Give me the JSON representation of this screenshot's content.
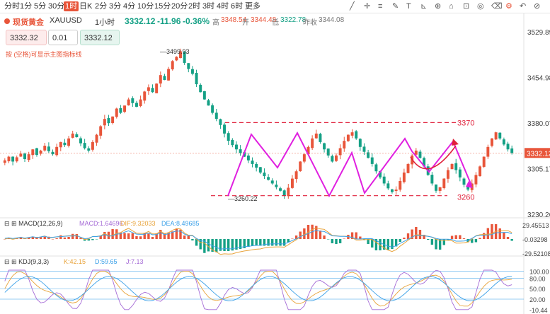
{
  "toolbar": {
    "timeframes": [
      "分时",
      "1分",
      "5分",
      "30分",
      "1时",
      "日K",
      "2分",
      "3分",
      "4分",
      "10分",
      "15分",
      "20分",
      "2时",
      "3时",
      "4时",
      "6时",
      "更多"
    ],
    "active_timeframe": "1时",
    "right_icons": [
      "trendline-icon",
      "crosshair-icon",
      "fibonacci-icon",
      "brush-icon",
      "text-icon",
      "measure-icon",
      "zoom-icon",
      "magnet-icon",
      "lock-icon",
      "eye-icon",
      "delete-icon",
      "settings-icon",
      "undo-icon",
      "eye-hide-icon"
    ]
  },
  "info": {
    "symbol_name": "现货黄金",
    "symbol_code": "XAUUSD",
    "period": "1小时",
    "price": "3332.12",
    "change": "-11.96",
    "change_pct": "-0.36%",
    "high_label": "高",
    "high": "3348.54",
    "open_label": "开",
    "open": "3344.48",
    "low_label": "低",
    "low": "3322.78",
    "prev_close_label": "昨收",
    "prev_close": "3344.08"
  },
  "order": {
    "sell_price": "3332.32",
    "quantity": "0.01",
    "buy_price": "3332.12",
    "hint": "按 (空格)可显示主图指标线"
  },
  "colors": {
    "up": "#e8553a",
    "down": "#14a085",
    "accent": "#e8553a",
    "annotation_magenta": "#e020e0",
    "annotation_red": "#e0203a",
    "current_price_bg": "#e8553a"
  },
  "chart_data": [
    {
      "type": "candlestick",
      "title": "XAUUSD 1小时",
      "yaxis_ticks": [
        3529.89,
        3454.98,
        3380.07,
        3305.17,
        3230.26
      ],
      "ylim": [
        3230.26,
        3529.89
      ],
      "current_price": 3332.12,
      "annotations": {
        "high_marker": "3499.93",
        "low_marker": "3260.22",
        "channel_top_label": "3370",
        "channel_bottom_label": "3260",
        "channel_top": 3370,
        "channel_bottom": 3260
      },
      "close_series": [
        3320,
        3326,
        3318,
        3325,
        3331,
        3322,
        3330,
        3338,
        3329,
        3336,
        3344,
        3335,
        3330,
        3342,
        3350,
        3345,
        3356,
        3364,
        3358,
        3348,
        3340,
        3336,
        3350,
        3362,
        3376,
        3388,
        3381,
        3392,
        3405,
        3398,
        3410,
        3420,
        3414,
        3408,
        3420,
        3433,
        3440,
        3432,
        3446,
        3460,
        3452,
        3470,
        3483,
        3490,
        3499,
        3480,
        3470,
        3462,
        3445,
        3432,
        3420,
        3410,
        3398,
        3388,
        3378,
        3364,
        3352,
        3345,
        3338,
        3332,
        3326,
        3320,
        3314,
        3308,
        3300,
        3294,
        3288,
        3282,
        3276,
        3270,
        3262,
        3275,
        3290,
        3302,
        3318,
        3330,
        3342,
        3356,
        3364,
        3350,
        3338,
        3328,
        3318,
        3328,
        3340,
        3352,
        3362,
        3366,
        3356,
        3342,
        3334,
        3324,
        3314,
        3302,
        3292,
        3282,
        3274,
        3268,
        3272,
        3286,
        3300,
        3314,
        3328,
        3336,
        3324,
        3310,
        3296,
        3282,
        3270,
        3276,
        3290,
        3304,
        3314,
        3304,
        3292,
        3280,
        3272,
        3282,
        3296,
        3310,
        3326,
        3342,
        3356,
        3366,
        3356,
        3346,
        3338,
        3332
      ]
    },
    {
      "type": "macd",
      "title": "MACD(12,26,9)",
      "legend": [
        {
          "name": "MACD",
          "value": "1.64696",
          "color": "#a56bd6"
        },
        {
          "name": "DIF",
          "value": "9.32033",
          "color": "#e8a33a"
        },
        {
          "name": "DEA",
          "value": "8.49685",
          "color": "#3aa0e8"
        }
      ],
      "yaxis_ticks": [
        29.45513,
        -0.03298,
        -29.52108
      ],
      "ylim": [
        -29.52108,
        29.45513
      ]
    },
    {
      "type": "kdj",
      "title": "KDJ(9,3,3)",
      "legend": [
        {
          "name": "K",
          "value": "42.15",
          "color": "#e8a33a"
        },
        {
          "name": "D",
          "value": "59.65",
          "color": "#3aa0e8"
        },
        {
          "name": "J",
          "value": "7.13",
          "color": "#a56bd6"
        }
      ],
      "yaxis_ticks": [
        100.0,
        80.0,
        50.0,
        20.0,
        -10.44
      ],
      "ylim": [
        -10.44,
        103.0
      ]
    }
  ]
}
